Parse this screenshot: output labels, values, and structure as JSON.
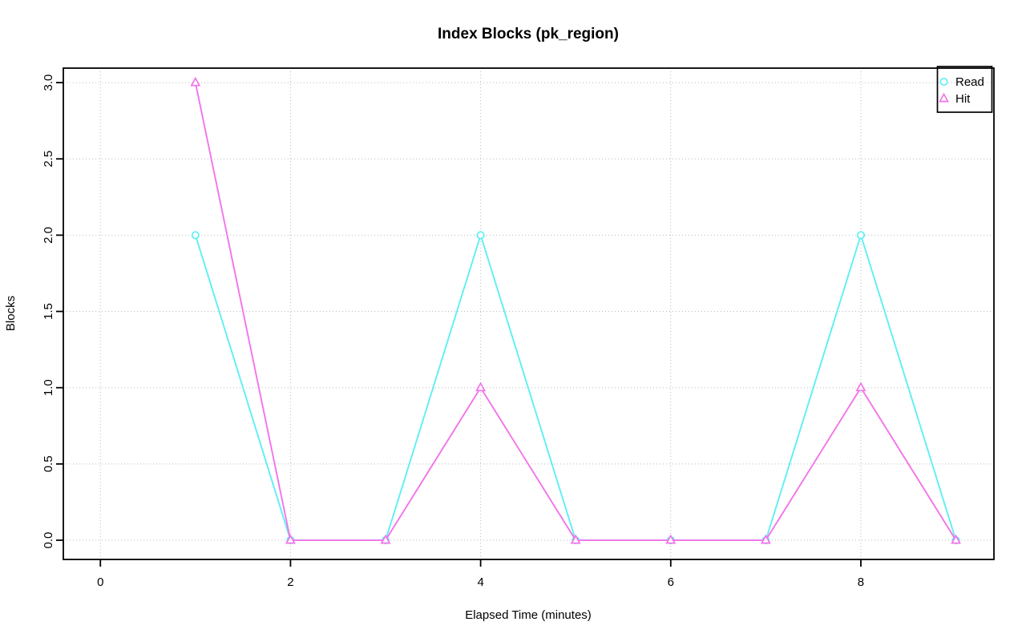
{
  "chart_data": {
    "type": "line",
    "title": "Index Blocks (pk_region)",
    "xlabel": "Elapsed Time (minutes)",
    "ylabel": "Blocks",
    "x": [
      1,
      2,
      3,
      4,
      5,
      6,
      7,
      8,
      9
    ],
    "series": [
      {
        "name": "Read",
        "marker": "circle",
        "color": "#5EEFF4",
        "values": [
          2,
          0,
          0,
          2,
          0,
          0,
          0,
          2,
          0
        ]
      },
      {
        "name": "Hit",
        "marker": "triangle",
        "color": "#F473EB",
        "values": [
          3,
          0,
          0,
          1,
          0,
          0,
          0,
          1,
          0
        ]
      }
    ],
    "xticks": [
      "0",
      "2",
      "4",
      "6",
      "8"
    ],
    "xtick_values": [
      0,
      2,
      4,
      6,
      8
    ],
    "yticks": [
      "0.0",
      "0.5",
      "1.0",
      "1.5",
      "2.0",
      "2.5",
      "3.0"
    ],
    "ytick_values": [
      0,
      0.5,
      1,
      1.5,
      2,
      2.5,
      3
    ],
    "xlim": [
      -0.39,
      9.4
    ],
    "ylim": [
      -0.126,
      3.095
    ],
    "grid": "dotted",
    "legend_position": "top-right",
    "colors": {
      "grid": "#BBBBBB",
      "axis": "#000000",
      "text": "#000000",
      "background": "#FFFFFF"
    }
  }
}
